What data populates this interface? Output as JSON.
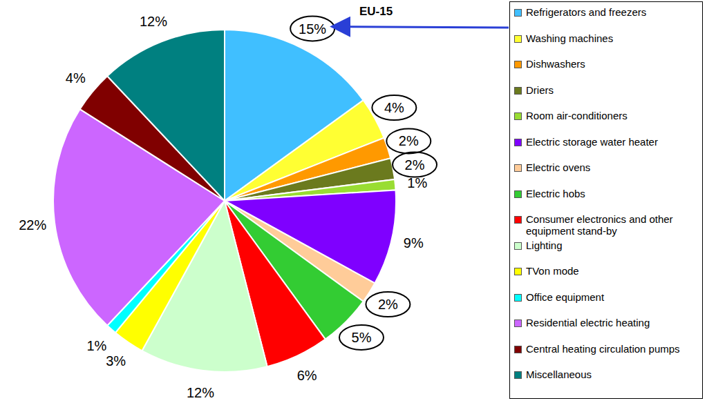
{
  "chart_data": {
    "type": "pie",
    "annotation": "EU-15",
    "categories": [
      "Refrigerators and freezers",
      "Washing machines",
      "Dishwashers",
      "Driers",
      "Room air-conditioners",
      "Electric storage water heater",
      "Electric ovens",
      "Electric hobs",
      "Consumer electronics and other equipment stand-by",
      "Lighting",
      "TVon mode",
      "Office equipment",
      "Residential electric heating",
      "Central heating circulation pumps",
      "Miscellaneous"
    ],
    "values": [
      15,
      4,
      2,
      2,
      1,
      9,
      2,
      5,
      6,
      12,
      3,
      1,
      22,
      4,
      12
    ],
    "value_labels": [
      "15%",
      "4%",
      "2%",
      "2%",
      "1%",
      "9%",
      "2%",
      "5%",
      "6%",
      "12%",
      "3%",
      "1%",
      "22%",
      "4%",
      "12%"
    ],
    "colors": [
      "#40bfff",
      "#ffff33",
      "#ff9900",
      "#6b7a1e",
      "#99dd33",
      "#7f00ff",
      "#ffcc99",
      "#33cc33",
      "#ff0000",
      "#ccffcc",
      "#ffff00",
      "#00ffff",
      "#cc66ff",
      "#800000",
      "#008080"
    ],
    "data_labels": true,
    "legend": "right"
  }
}
